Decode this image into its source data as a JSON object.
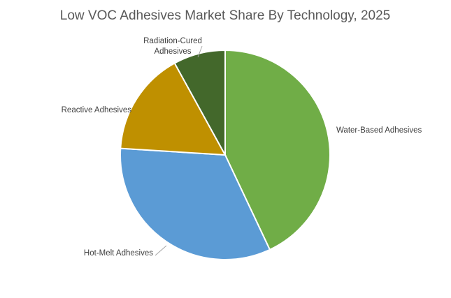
{
  "chart_data": {
    "type": "pie",
    "title": "Low VOC Adhesives Market Share By Technology, 2025",
    "categories": [
      "Water-Based Adhesives",
      "Hot-Melt Adhesives",
      "Reactive Adhesives",
      "Radiation-Cured Adhesives"
    ],
    "values": [
      43,
      33,
      16,
      8
    ],
    "unit": "percent share (estimated, unlabeled)",
    "colors": [
      "#70ad47",
      "#5b9bd5",
      "#bf9000",
      "#43682b"
    ],
    "legend": "none",
    "labels": [
      {
        "text": "Water-Based Adhesives",
        "lines": [
          "Water-Based Adhesives"
        ]
      },
      {
        "text": "Hot-Melt Adhesives",
        "lines": [
          "Hot-Melt Adhesives"
        ]
      },
      {
        "text": "Reactive Adhesives",
        "lines": [
          "Reactive Adhesives"
        ]
      },
      {
        "text": "Radiation-Cured Adhesives",
        "lines": [
          "Radiation-Cured",
          "Adhesives"
        ]
      }
    ]
  }
}
